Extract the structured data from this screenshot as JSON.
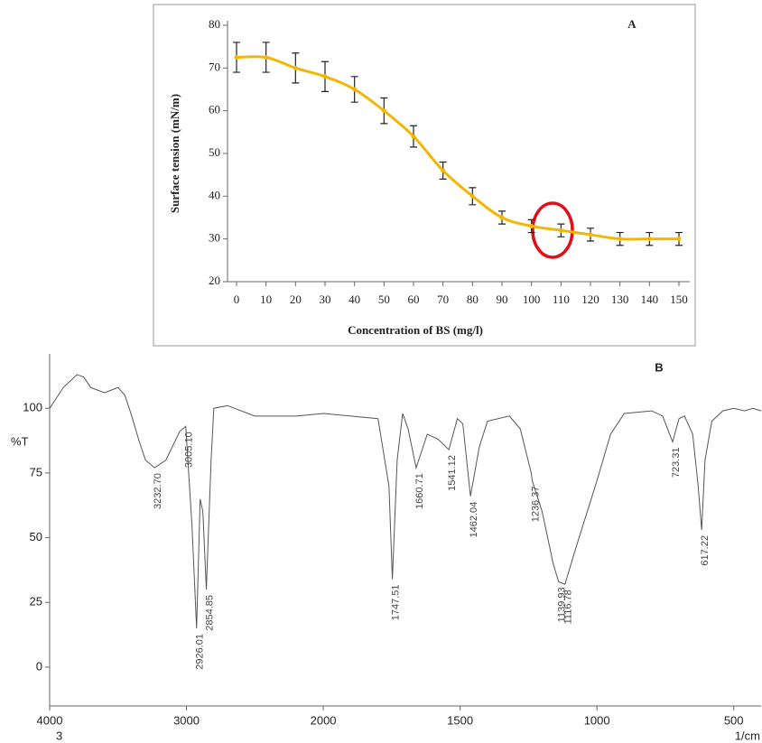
{
  "chart_data": [
    {
      "type": "line",
      "title": "A",
      "x_label": "Concentration of BS (mg/l)",
      "y_label": "Surface tension (mN/m)",
      "x": [
        0,
        10,
        20,
        30,
        40,
        50,
        60,
        70,
        80,
        90,
        100,
        110,
        120,
        130,
        140,
        150
      ],
      "values": [
        72.5,
        72.5,
        70,
        68,
        65,
        60,
        54,
        46,
        40,
        35,
        33,
        32,
        31,
        30,
        30,
        30
      ],
      "errors": [
        3.5,
        3.5,
        3.5,
        3.5,
        3,
        3,
        2.5,
        2,
        2,
        1.5,
        1.5,
        1.5,
        1.5,
        1.5,
        1.5,
        1.5
      ],
      "color": "#f2b705",
      "xlim": [
        0,
        150
      ],
      "xticks": [
        0,
        10,
        20,
        30,
        40,
        50,
        60,
        70,
        80,
        90,
        100,
        110,
        120,
        130,
        140,
        150
      ],
      "ylim": [
        20,
        80
      ],
      "yticks": [
        20,
        30,
        40,
        50,
        60,
        70,
        80
      ]
    },
    {
      "type": "line",
      "title": "B",
      "y_label": "%T",
      "x_unit": "1/cm",
      "footnote": "3",
      "x": [
        4000,
        3900,
        3800,
        3750,
        3700,
        3600,
        3500,
        3450,
        3400,
        3350,
        3300,
        3232.7,
        3150,
        3050,
        3005.1,
        2990,
        2960,
        2926.01,
        2900,
        2880,
        2854.85,
        2820,
        2800,
        2700,
        2500,
        2200,
        2000,
        1900,
        1800,
        1760,
        1747.51,
        1730,
        1710,
        1690,
        1660.71,
        1620,
        1580,
        1541.12,
        1510,
        1490,
        1462.04,
        1430,
        1400,
        1320,
        1280,
        1240,
        1236.37,
        1200,
        1160,
        1139.93,
        1116.78,
        1080,
        1000,
        950,
        900,
        800,
        760,
        723.31,
        700,
        680,
        650,
        630,
        617.22,
        605,
        580,
        540,
        500,
        460,
        430,
        400
      ],
      "values": [
        100,
        108,
        113,
        112,
        108,
        106,
        108,
        105,
        97,
        88,
        80,
        77,
        80,
        91,
        93,
        80,
        55,
        15,
        65,
        60,
        30,
        80,
        100,
        101,
        97,
        97,
        98,
        97,
        96,
        70,
        34,
        80,
        98,
        92,
        77,
        90,
        88,
        84,
        96,
        94,
        66,
        85,
        95,
        97,
        92,
        75,
        72,
        60,
        40,
        33,
        32,
        45,
        72,
        90,
        98,
        99,
        97,
        87,
        96,
        97,
        90,
        70,
        53,
        80,
        95,
        99,
        100,
        99,
        100,
        99
      ],
      "color": "#555555",
      "annotations": [
        {
          "value": 3232.7,
          "label": "3232.70"
        },
        {
          "value": 3005.1,
          "label": "3005.10"
        },
        {
          "value": 2926.01,
          "label": "2926.01"
        },
        {
          "value": 2854.85,
          "label": "2854.85"
        },
        {
          "value": 1747.51,
          "label": "1747.51"
        },
        {
          "value": 1660.71,
          "label": "1660.71"
        },
        {
          "value": 1541.12,
          "label": "1541.12"
        },
        {
          "value": 1462.04,
          "label": "1462.04"
        },
        {
          "value": 1236.37,
          "label": "1236.37"
        },
        {
          "value": 1139.93,
          "label": "1139.93"
        },
        {
          "value": 1116.78,
          "label": "1116.78"
        },
        {
          "value": 723.31,
          "label": "723.31"
        },
        {
          "value": 617.22,
          "label": "617.22"
        }
      ],
      "xlim": [
        4000,
        400
      ],
      "xticks": [
        4000,
        3000,
        2000,
        1500,
        1000,
        500
      ],
      "ylim": [
        -15,
        121
      ],
      "yticks": [
        0,
        25,
        50,
        75,
        100
      ]
    }
  ]
}
